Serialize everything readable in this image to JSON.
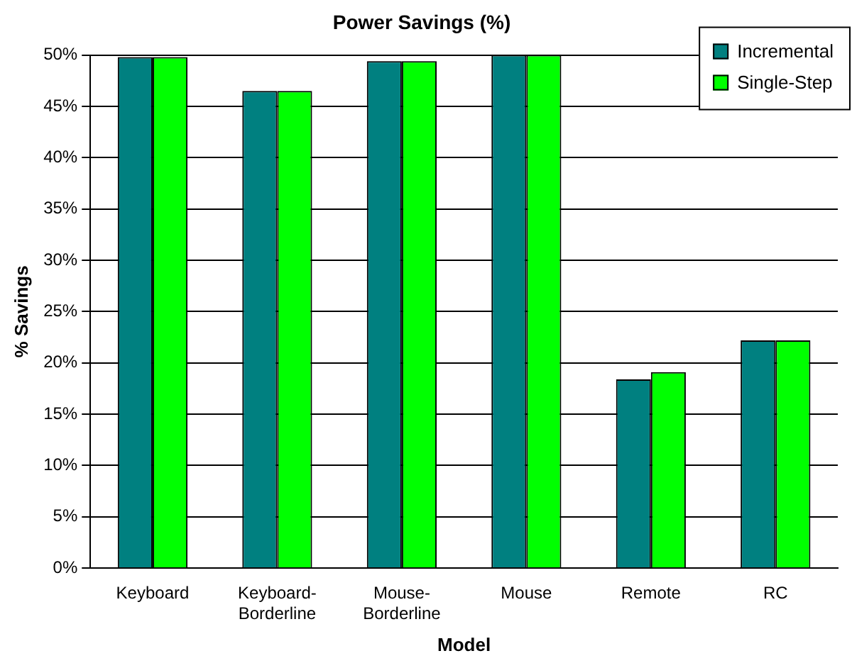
{
  "chart_data": {
    "type": "bar",
    "title": "Power Savings (%)",
    "xlabel": "Model",
    "ylabel": "% Savings",
    "categories": [
      "Keyboard",
      "Keyboard-Borderline",
      "Mouse-Borderline",
      "Mouse",
      "Remote",
      "RC"
    ],
    "series": [
      {
        "name": "Incremental",
        "color": "#008080",
        "values": [
          49.8,
          46.5,
          49.4,
          50,
          18.4,
          22.2
        ]
      },
      {
        "name": "Single-Step",
        "color": "#00ff00",
        "values": [
          49.8,
          46.5,
          49.4,
          50,
          19.1,
          22.2
        ]
      }
    ],
    "ylim": [
      0,
      50
    ],
    "yticks": [
      {
        "value": 0,
        "label": "0%"
      },
      {
        "value": 5,
        "label": "5%"
      },
      {
        "value": 10,
        "label": "10%"
      },
      {
        "value": 15,
        "label": "15%"
      },
      {
        "value": 20,
        "label": "20%"
      },
      {
        "value": 25,
        "label": "25%"
      },
      {
        "value": 30,
        "label": "30%"
      },
      {
        "value": 35,
        "label": "35%"
      },
      {
        "value": 40,
        "label": "40%"
      },
      {
        "value": 45,
        "label": "45%"
      },
      {
        "value": 50,
        "label": "50%"
      }
    ],
    "grid": "y",
    "legend": "top right"
  }
}
